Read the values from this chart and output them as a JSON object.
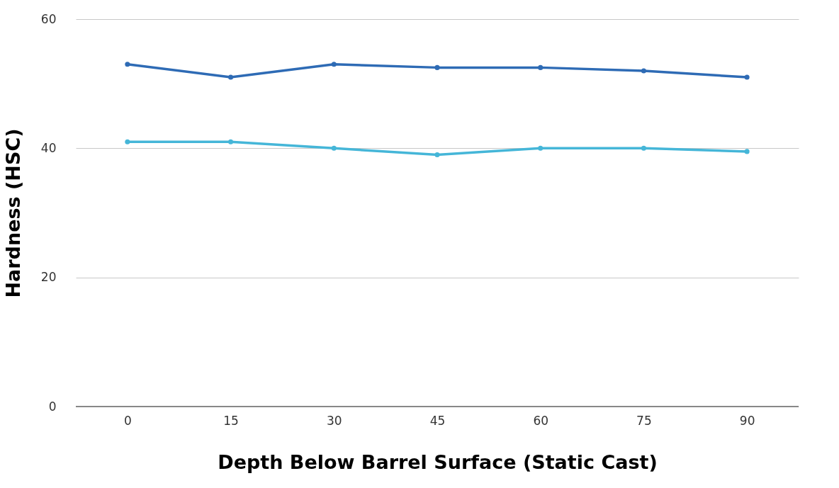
{
  "chart_data": {
    "type": "line",
    "xlabel": "Depth Below Barrel Surface (Static Cast)",
    "ylabel": "Hardness (HSC)",
    "categories": [
      "0",
      "15",
      "30",
      "45",
      "60",
      "75",
      "90"
    ],
    "series": [
      {
        "color": "#2e6bb5",
        "values": [
          53,
          51,
          53,
          52.5,
          52.5,
          52,
          51
        ]
      },
      {
        "color": "#45b6d8",
        "values": [
          41,
          41,
          40,
          39,
          40,
          40,
          39.5
        ]
      }
    ],
    "ylim": [
      0,
      60
    ],
    "yticks": [
      0,
      20,
      40,
      60
    ],
    "grid": "y",
    "legend": false,
    "marker": "circle",
    "line_style": "solid"
  }
}
